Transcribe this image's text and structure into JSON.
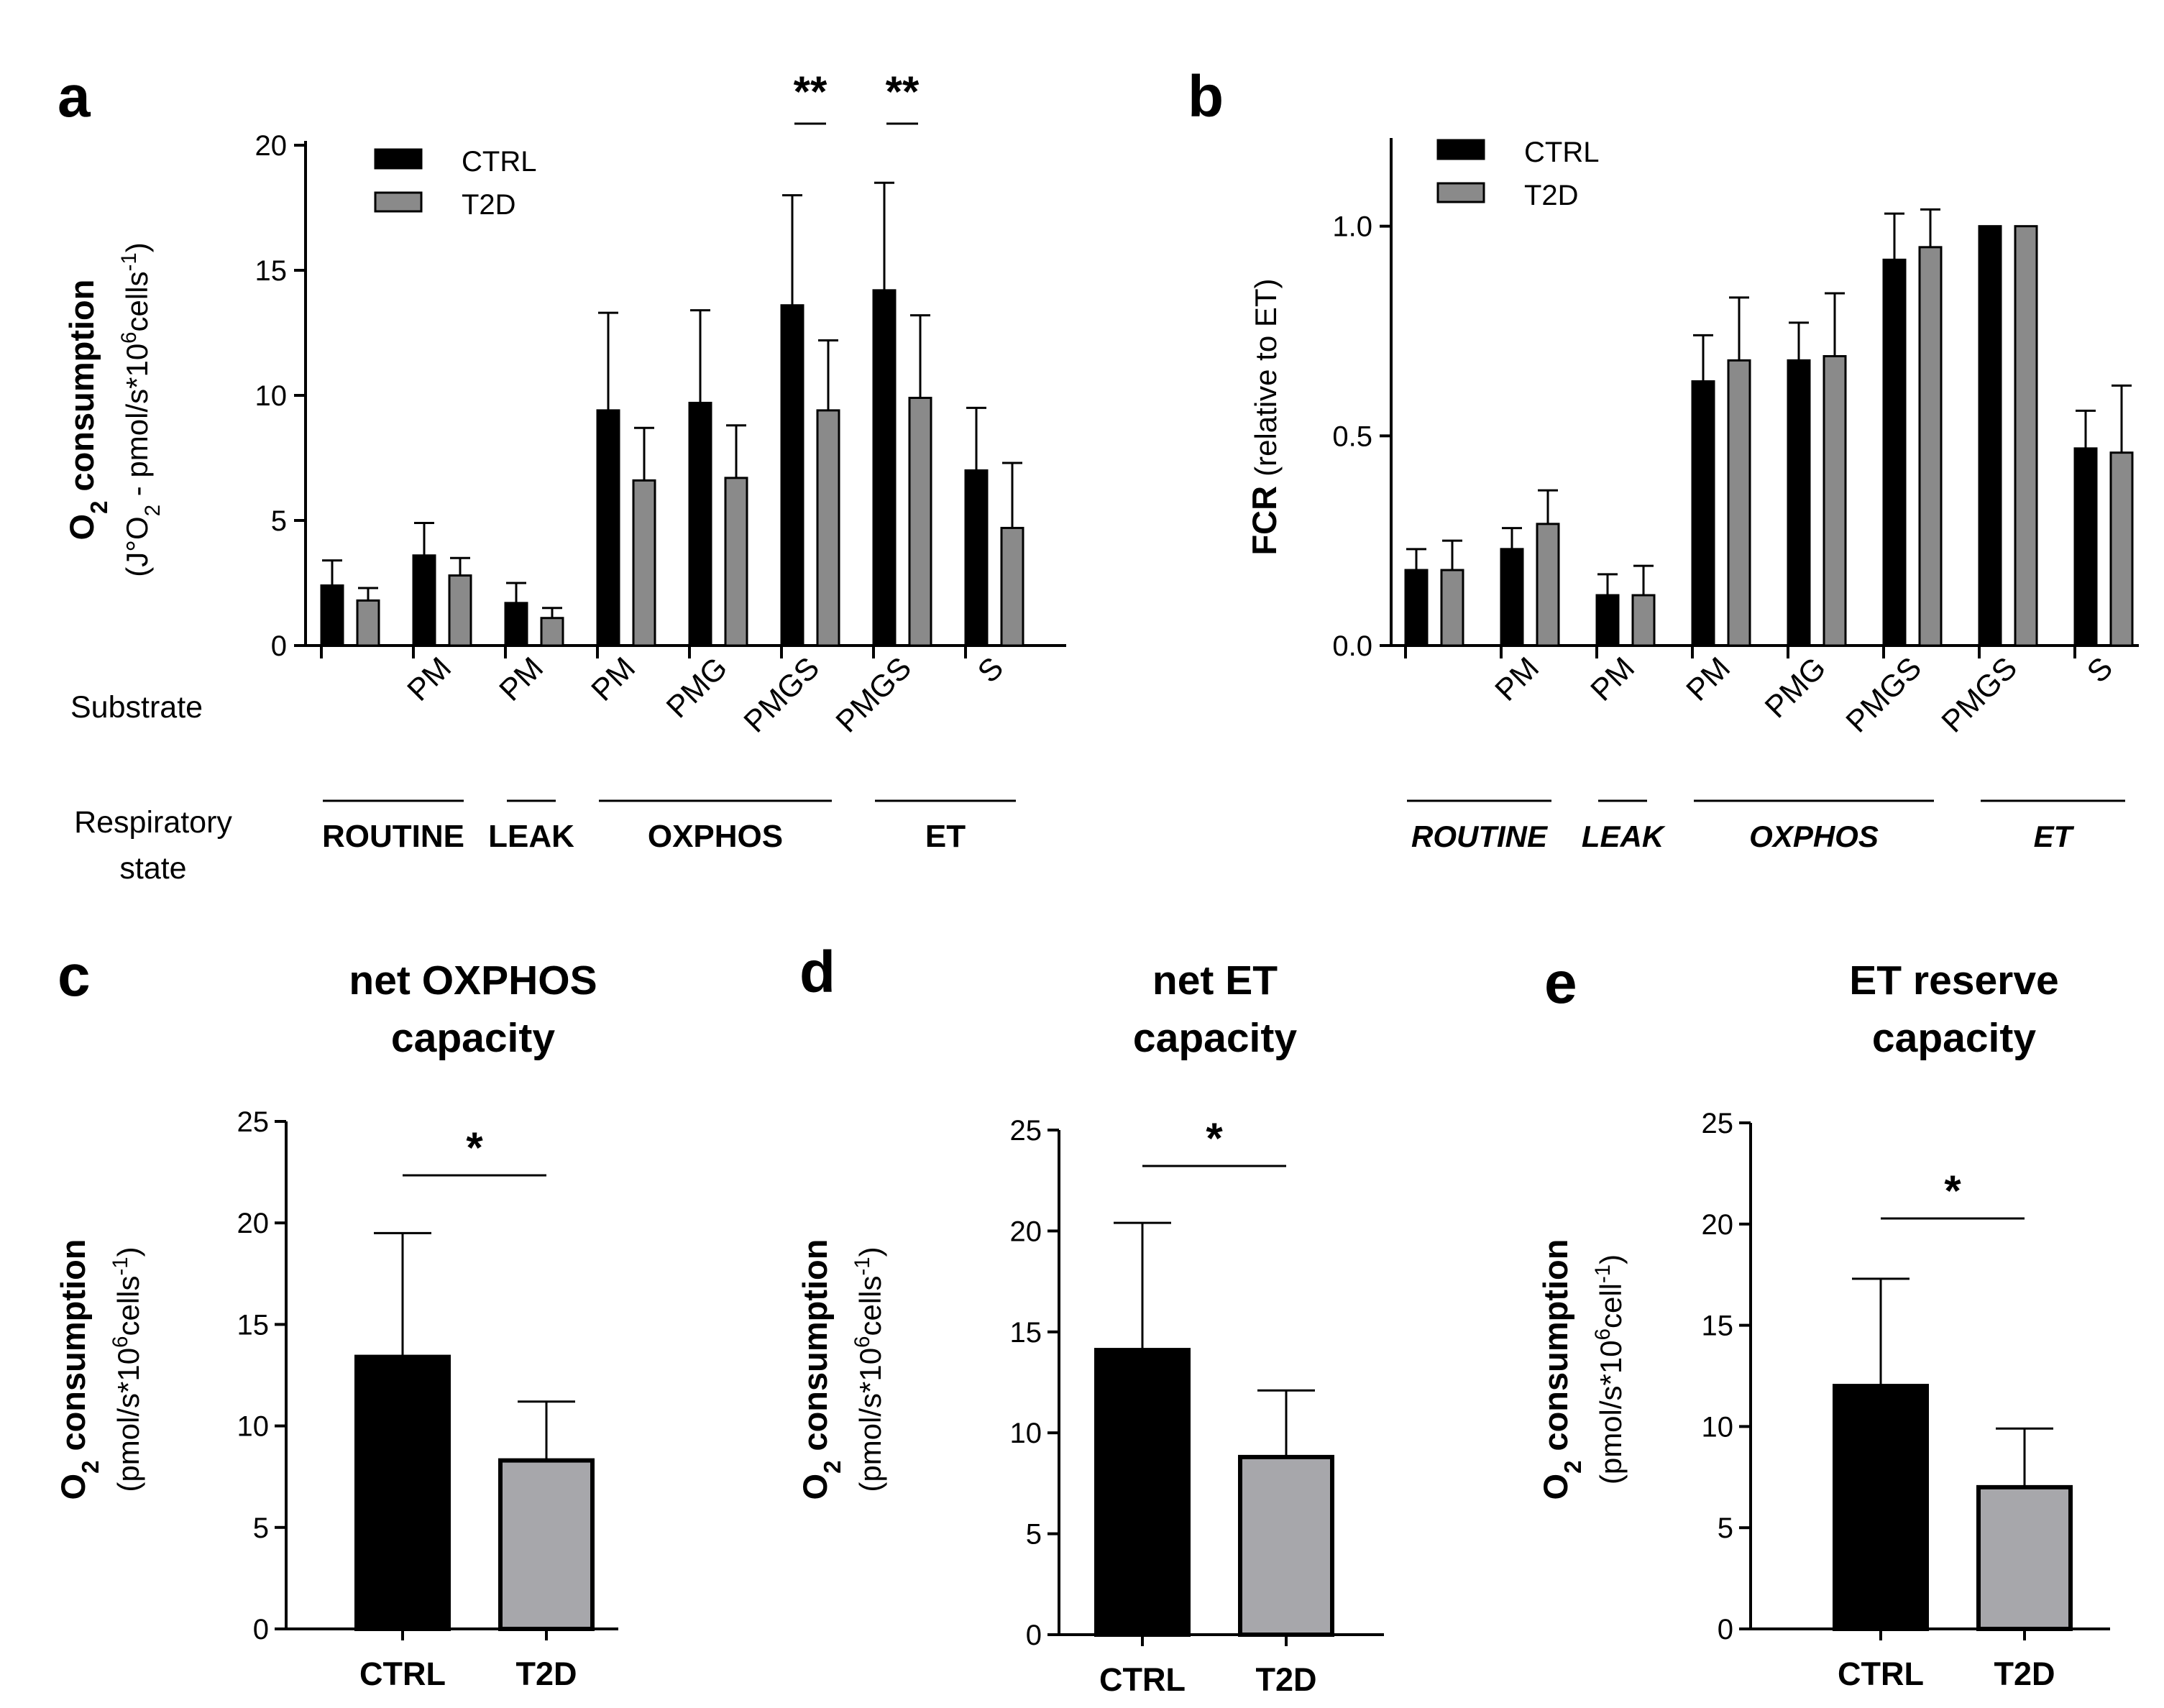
{
  "colors": {
    "ctrl": "#000000",
    "t2d": "#8a8a8a",
    "t2d_small": "#a7a7ab",
    "axis": "#000000"
  },
  "chart_data": [
    {
      "panel": "a",
      "type": "bar",
      "ylabel": "O2 consumption",
      "ylabel_units": "(J°O2 - pmol/s*10^6cells^-1)",
      "ylim": [
        0,
        20
      ],
      "yticks": [
        0,
        5,
        10,
        15,
        20
      ],
      "substrate_row_label": "Substrate",
      "state_row_label": "Respiratory state",
      "categories": [
        "",
        "PM",
        "PM",
        "PM",
        "PMG",
        "PMGS",
        "PMGS",
        "S"
      ],
      "states": [
        {
          "label": "ROUTINE",
          "groups": [
            0,
            1
          ]
        },
        {
          "label": "LEAK",
          "groups": [
            2,
            2
          ]
        },
        {
          "label": "OXPHOS",
          "groups": [
            3,
            5
          ]
        },
        {
          "label": "ET",
          "groups": [
            6,
            7
          ]
        }
      ],
      "legend": [
        "CTRL",
        "T2D"
      ],
      "series": [
        {
          "name": "CTRL",
          "values": [
            2.4,
            3.6,
            1.7,
            9.4,
            9.7,
            13.6,
            14.2,
            7.0
          ],
          "errors": [
            1.0,
            1.3,
            0.8,
            3.9,
            3.7,
            4.4,
            4.3,
            2.5
          ]
        },
        {
          "name": "T2D",
          "values": [
            1.8,
            2.8,
            1.1,
            6.6,
            6.7,
            9.4,
            9.9,
            4.7
          ],
          "errors": [
            0.5,
            0.7,
            0.4,
            2.1,
            2.1,
            2.8,
            3.3,
            2.6
          ]
        }
      ],
      "significance": [
        {
          "group": 5,
          "label": "**"
        },
        {
          "group": 6,
          "label": "**"
        }
      ]
    },
    {
      "panel": "b",
      "type": "bar",
      "ylabel": "FCR",
      "ylabel_units": "(relative to ET)",
      "ylim": [
        0,
        1.2
      ],
      "yticks": [
        "0.0",
        "0.5",
        "1.0"
      ],
      "categories": [
        "",
        "PM",
        "PM",
        "PM",
        "PMG",
        "PMGS",
        "PMGS",
        "S"
      ],
      "states": [
        {
          "label": "ROUTINE",
          "groups": [
            0,
            1
          ]
        },
        {
          "label": "LEAK",
          "groups": [
            2,
            2
          ]
        },
        {
          "label": "OXPHOS",
          "groups": [
            3,
            5
          ]
        },
        {
          "label": "ET",
          "groups": [
            6,
            7
          ]
        }
      ],
      "legend": [
        "CTRL",
        "T2D"
      ],
      "series": [
        {
          "name": "CTRL",
          "values": [
            0.18,
            0.23,
            0.12,
            0.63,
            0.68,
            0.92,
            1.0,
            0.47
          ],
          "errors": [
            0.05,
            0.05,
            0.05,
            0.11,
            0.09,
            0.11,
            0.0,
            0.09
          ]
        },
        {
          "name": "T2D",
          "values": [
            0.18,
            0.29,
            0.12,
            0.68,
            0.69,
            0.95,
            1.0,
            0.46
          ],
          "errors": [
            0.07,
            0.08,
            0.07,
            0.15,
            0.15,
            0.09,
            0.0,
            0.16
          ]
        }
      ]
    },
    {
      "panel": "c",
      "type": "bar",
      "title": [
        "net OXPHOS",
        "capacity"
      ],
      "ylabel": "O2 consumption",
      "ylabel_units": "(pmol/s*10^6cells^-1)",
      "ylim": [
        0,
        25
      ],
      "yticks": [
        0,
        5,
        10,
        15,
        20,
        25
      ],
      "categories": [
        "CTRL",
        "T2D"
      ],
      "values": [
        13.4,
        8.3
      ],
      "errors": [
        6.1,
        2.9
      ],
      "significance": "*"
    },
    {
      "panel": "d",
      "type": "bar",
      "title": [
        "net ET",
        "capacity"
      ],
      "ylabel": "O2 consumption",
      "ylabel_units": "(pmol/s*10^6cells^-1)",
      "ylim": [
        0,
        25
      ],
      "yticks": [
        0,
        5,
        10,
        15,
        20,
        25
      ],
      "categories": [
        "CTRL",
        "T2D"
      ],
      "values": [
        14.1,
        8.8
      ],
      "errors": [
        6.3,
        3.3
      ],
      "significance": "*"
    },
    {
      "panel": "e",
      "type": "bar",
      "title": [
        "ET reserve",
        "capacity"
      ],
      "ylabel": "O2 consumption",
      "ylabel_units": "(pmol/s*10^6cell^-1)",
      "ylim": [
        0,
        25
      ],
      "yticks": [
        0,
        5,
        10,
        15,
        20,
        25
      ],
      "categories": [
        "CTRL",
        "T2D"
      ],
      "values": [
        12.0,
        7.0
      ],
      "errors": [
        5.3,
        2.9
      ],
      "significance": "*"
    }
  ]
}
